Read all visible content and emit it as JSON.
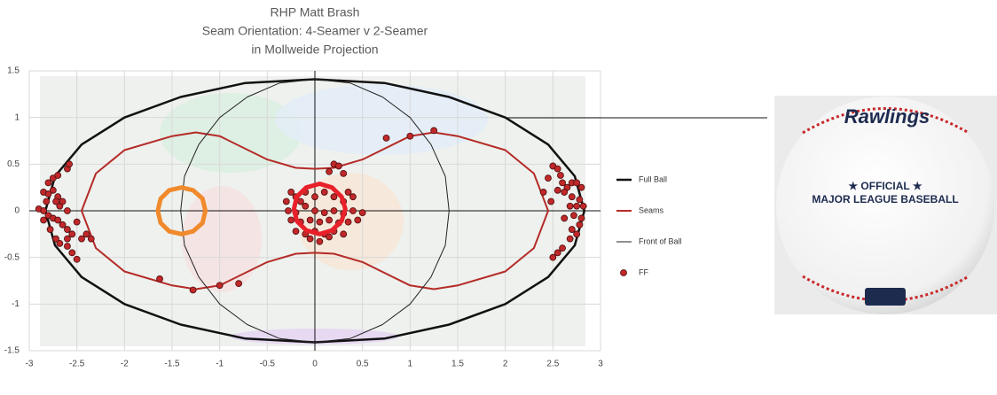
{
  "chart_data": {
    "type": "scatter",
    "title": [
      "RHP Matt Brash",
      "Seam Orientation: 4-Seamer v 2-Seamer",
      "in Mollweide Projection"
    ],
    "xlim": [
      -3,
      3
    ],
    "ylim": [
      -1.5,
      1.5
    ],
    "xticks": [
      -3,
      -2.5,
      -2,
      -1.5,
      -1,
      -0.5,
      0,
      0.5,
      1,
      1.5,
      2,
      2.5,
      3
    ],
    "yticks": [
      -1.5,
      -1,
      -0.5,
      0,
      0.5,
      1,
      1.5
    ],
    "grid": true,
    "series": [
      {
        "name": "Full Ball",
        "mode": "line",
        "color": "#111111",
        "width": 2.5,
        "x": [
          2.83,
          2.73,
          2.45,
          2.0,
          1.41,
          0.73,
          0,
          -0.73,
          -1.41,
          -2.0,
          -2.45,
          -2.73,
          -2.83,
          -2.73,
          -2.45,
          -2.0,
          -1.41,
          -0.73,
          0,
          0.73,
          1.41,
          2.0,
          2.45,
          2.73,
          2.83
        ],
        "y": [
          0,
          0.37,
          0.71,
          1.0,
          1.22,
          1.37,
          1.41,
          1.37,
          1.22,
          1.0,
          0.71,
          0.37,
          0,
          -0.37,
          -0.71,
          -1.0,
          -1.22,
          -1.37,
          -1.41,
          -1.37,
          -1.22,
          -1.0,
          -0.71,
          -0.37,
          0
        ]
      },
      {
        "name": "Seams",
        "mode": "line",
        "color": "#b52b27",
        "width": 2,
        "x": [
          -2.45,
          -2.3,
          -2.0,
          -1.5,
          -1.25,
          -1.0,
          -0.5,
          -0.2,
          0,
          0.2,
          0.5,
          1.0,
          1.25,
          1.5,
          2.0,
          2.3,
          2.45,
          2.3,
          2.0,
          1.5,
          1.25,
          1.0,
          0.5,
          0.2,
          0,
          -0.2,
          -0.5,
          -1.0,
          -1.25,
          -1.5,
          -2.0,
          -2.3,
          -2.45
        ],
        "y": [
          0,
          0.4,
          0.65,
          0.8,
          0.84,
          0.8,
          0.55,
          0.46,
          0.45,
          0.46,
          0.55,
          0.8,
          0.84,
          0.8,
          0.65,
          0.4,
          0,
          -0.4,
          -0.65,
          -0.8,
          -0.84,
          -0.8,
          -0.55,
          -0.46,
          -0.45,
          -0.46,
          -0.55,
          -0.8,
          -0.84,
          -0.8,
          -0.65,
          -0.4,
          0
        ]
      },
      {
        "name": "Front of Ball",
        "mode": "line",
        "color": "#222222",
        "width": 1,
        "x": [
          1.41,
          1.37,
          1.22,
          1.0,
          0.71,
          0.37,
          0,
          -0.37,
          -0.71,
          -1.0,
          -1.22,
          -1.37,
          -1.41,
          -1.37,
          -1.22,
          -1.0,
          -0.71,
          -0.37,
          0,
          0.37,
          0.71,
          1.0,
          1.22,
          1.37,
          1.41
        ],
        "y": [
          0,
          0.37,
          0.71,
          1.0,
          1.22,
          1.37,
          1.41,
          1.37,
          1.22,
          1.0,
          0.71,
          0.37,
          0,
          -0.37,
          -0.71,
          -1.0,
          -1.22,
          -1.37,
          -1.41,
          -1.37,
          -1.22,
          -1.0,
          -0.71,
          -0.37,
          0
        ]
      },
      {
        "name": "FF",
        "mode": "markers",
        "color": "#c0282a",
        "x": [
          -2.8,
          -2.75,
          -2.7,
          -2.6,
          -2.58,
          -2.85,
          -2.8,
          -2.75,
          -2.7,
          -2.68,
          -2.9,
          -2.85,
          -2.8,
          -2.75,
          -2.7,
          -2.65,
          -2.6,
          -2.55,
          -2.85,
          -2.78,
          -2.72,
          -2.68,
          -2.6,
          -2.55,
          -2.5,
          -2.45,
          -2.4,
          -2.35,
          -2.6,
          -2.65,
          -2.5,
          -2.72,
          -2.82,
          -2.6,
          2.5,
          2.55,
          2.58,
          2.45,
          2.6,
          2.65,
          2.7,
          2.75,
          2.8,
          2.55,
          2.62,
          2.7,
          2.78,
          2.82,
          2.75,
          2.68,
          2.72,
          2.8,
          2.78,
          2.7,
          2.75,
          2.68,
          2.6,
          2.55,
          2.5,
          2.62,
          2.48,
          2.4,
          0.2,
          0.25,
          0.15,
          0.3,
          -0.25,
          -0.2,
          -0.15,
          -0.1,
          0,
          0.1,
          0.2,
          0.3,
          0.35,
          0.4,
          -0.28,
          -0.2,
          -0.1,
          0,
          0.1,
          0.2,
          0.3,
          0.4,
          -0.25,
          -0.15,
          -0.05,
          0.05,
          0.15,
          0.25,
          0.35,
          -0.2,
          -0.1,
          0,
          0.1,
          0.2,
          0.3,
          -0.05,
          0.05,
          0.15,
          0.5,
          0.45,
          -0.3,
          0.75,
          1.0,
          1.25,
          -0.8,
          -1.0,
          -1.28,
          -1.63
        ],
        "y": [
          0.3,
          0.35,
          0.38,
          0.45,
          0.5,
          0.2,
          0.18,
          0.22,
          0.15,
          0.05,
          0.02,
          0,
          -0.05,
          -0.08,
          -0.1,
          -0.15,
          -0.2,
          -0.25,
          -0.1,
          -0.2,
          -0.3,
          -0.35,
          -0.38,
          -0.45,
          -0.52,
          -0.3,
          -0.25,
          -0.3,
          0,
          0.1,
          -0.12,
          0.1,
          0.1,
          -0.3,
          0.48,
          0.45,
          0.38,
          0.35,
          0.3,
          0.25,
          0.3,
          0.3,
          0.25,
          0.22,
          0.2,
          0.15,
          0.12,
          0.05,
          0.05,
          0.05,
          -0.05,
          -0.08,
          -0.15,
          -0.2,
          -0.25,
          -0.3,
          -0.4,
          -0.45,
          -0.5,
          -0.08,
          0.1,
          0.2,
          0.5,
          0.48,
          0.42,
          0.4,
          0.2,
          0.15,
          0.1,
          0.2,
          0.15,
          0.2,
          0.15,
          0.1,
          0.2,
          0.15,
          0,
          -0.02,
          0.05,
          0,
          -0.02,
          0,
          -0.03,
          0,
          -0.1,
          -0.12,
          -0.1,
          -0.12,
          -0.1,
          -0.13,
          -0.12,
          -0.22,
          -0.25,
          -0.22,
          -0.25,
          -0.22,
          -0.25,
          -0.3,
          -0.33,
          -0.28,
          -0.02,
          -0.1,
          0.1,
          0.78,
          0.8,
          0.86,
          -0.78,
          -0.8,
          -0.85,
          -0.73
        ]
      },
      {
        "mode": "line",
        "color": "#f08a2c",
        "width": 5,
        "x": [
          -1.15,
          -1.18,
          -1.28,
          -1.4,
          -1.53,
          -1.62,
          -1.65,
          -1.62,
          -1.53,
          -1.4,
          -1.28,
          -1.18,
          -1.15
        ],
        "y": [
          0,
          0.13,
          0.22,
          0.25,
          0.22,
          0.13,
          0,
          -0.13,
          -0.22,
          -0.25,
          -0.22,
          -0.13,
          0
        ]
      },
      {
        "mode": "line",
        "color": "#e8202a",
        "width": 5,
        "x": [
          0.32,
          0.28,
          0.18,
          0.05,
          -0.09,
          -0.19,
          -0.22,
          -0.19,
          -0.09,
          0.05,
          0.18,
          0.28,
          0.32
        ],
        "y": [
          0.02,
          0.15,
          0.25,
          0.29,
          0.25,
          0.15,
          0.02,
          -0.11,
          -0.21,
          -0.25,
          -0.21,
          -0.11,
          0.02
        ]
      }
    ],
    "annotations": [
      "Rawlings",
      "★ OFFICIAL ★",
      "MAJOR LEAGUE BASEBALL"
    ]
  }
}
